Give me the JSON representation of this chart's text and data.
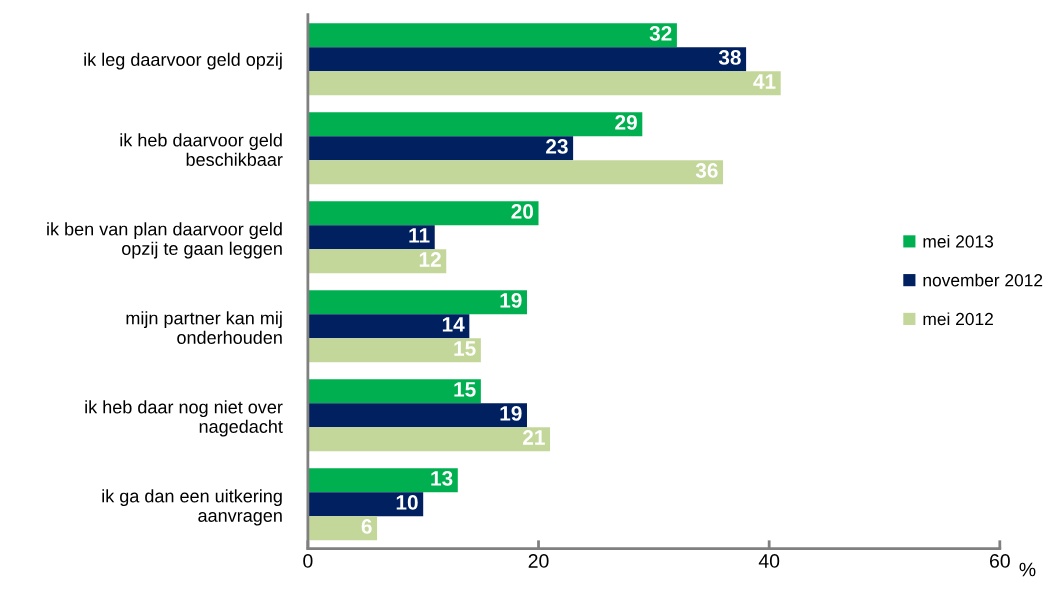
{
  "chart_data": {
    "type": "bar",
    "orientation": "horizontal",
    "categories": [
      "ik leg daarvoor geld opzij",
      "ik heb daarvoor geld\nbeschikbaar",
      "ik ben van plan daarvoor geld\nopzij te gaan leggen",
      "mijn partner kan mij\nonderhouden",
      "ik heb daar nog niet over\nnagedacht",
      "ik ga dan een uitkering\naanvragen"
    ],
    "series": [
      {
        "name": "mei 2013",
        "color": "#00b050",
        "values": [
          32,
          29,
          20,
          19,
          15,
          13
        ]
      },
      {
        "name": "november 2012",
        "color": "#002060",
        "values": [
          38,
          23,
          11,
          14,
          19,
          10
        ]
      },
      {
        "name": "mei 2012",
        "color": "#c4d79b",
        "values": [
          41,
          36,
          12,
          15,
          21,
          6
        ]
      }
    ],
    "xlim": [
      0,
      60
    ],
    "xticks": [
      0,
      20,
      40,
      60
    ],
    "xlabel": "%",
    "data_labels": true,
    "legend": "right",
    "grid": false
  }
}
